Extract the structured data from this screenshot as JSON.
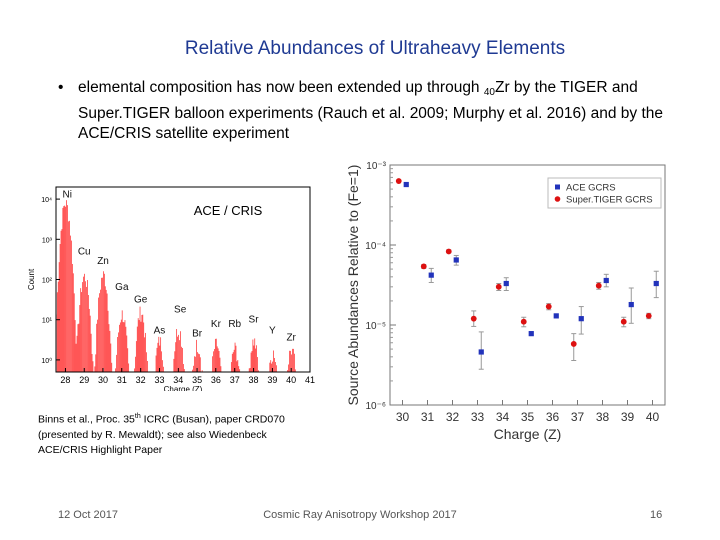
{
  "slide": {
    "title": "Relative Abundances of Ultraheavy Elements",
    "bullet": {
      "symbol": "•",
      "text_before": "elemental composition has now been extended up through ",
      "subscript": "40",
      "text_after": "Zr by the TIGER and Super.TIGER balloon experiments (Rauch et al. 2009; Murphy et al. 2016) and by the ACE/CRIS satellite experiment"
    },
    "citation": {
      "line1_before": "Binns et al., Proc. 35",
      "line1_sup": "th",
      "line1_after": " ICRC (Busan), paper CRD070",
      "line2": "(presented by R. Mewaldt); see also Wiedenbeck",
      "line3": "ACE/CRIS Highlight Paper"
    },
    "footer": {
      "date": "12 Oct 2017",
      "event": "Cosmic Ray Anisotropy Workshop 2017",
      "page": "16"
    }
  },
  "chart_data": [
    {
      "type": "histogram",
      "annotation": "ACE / CRIS",
      "xlabel": "Charge (Z)",
      "ylabel": "Count",
      "xlim": [
        27.5,
        41
      ],
      "x_ticks": [
        28,
        29,
        30,
        31,
        32,
        33,
        34,
        35,
        36,
        37,
        38,
        39,
        40,
        41
      ],
      "y_scale": "log",
      "ylim": [
        0.5,
        20000
      ],
      "y_ticks": [
        {
          "value": 1,
          "label": "10⁰"
        },
        {
          "value": 10,
          "label": "10¹"
        },
        {
          "value": 100,
          "label": "10²"
        },
        {
          "value": 1000,
          "label": "10³"
        },
        {
          "value": 10000,
          "label": "10⁴"
        }
      ],
      "bar_color": "#ff0000",
      "element_labels": [
        {
          "name": "Ni",
          "z": 28.1,
          "y": 11000
        },
        {
          "name": "Cu",
          "z": 29.0,
          "y": 420
        },
        {
          "name": "Zn",
          "z": 30.0,
          "y": 240
        },
        {
          "name": "Ga",
          "z": 31.0,
          "y": 55
        },
        {
          "name": "Ge",
          "z": 32.0,
          "y": 27
        },
        {
          "name": "As",
          "z": 33.0,
          "y": 4.5
        },
        {
          "name": "Se",
          "z": 34.1,
          "y": 15
        },
        {
          "name": "Br",
          "z": 35.0,
          "y": 3.8
        },
        {
          "name": "Kr",
          "z": 36.0,
          "y": 6.5
        },
        {
          "name": "Rb",
          "z": 37.0,
          "y": 6.5
        },
        {
          "name": "Sr",
          "z": 38.0,
          "y": 8.5
        },
        {
          "name": "Y",
          "z": 39.0,
          "y": 4.5
        },
        {
          "name": "Zr",
          "z": 40.0,
          "y": 3.0
        }
      ],
      "peaks": [
        {
          "z": 28,
          "height": 8000
        },
        {
          "z": 29,
          "height": 120
        },
        {
          "z": 30,
          "height": 130
        },
        {
          "z": 31,
          "height": 14
        },
        {
          "z": 32,
          "height": 16
        },
        {
          "z": 33,
          "height": 3
        },
        {
          "z": 34,
          "height": 6
        },
        {
          "z": 35,
          "height": 2.5
        },
        {
          "z": 36,
          "height": 2.5
        },
        {
          "z": 37,
          "height": 2
        },
        {
          "z": 38,
          "height": 3
        },
        {
          "z": 39,
          "height": 1.5
        },
        {
          "z": 40,
          "height": 1.8
        }
      ]
    },
    {
      "type": "scatter",
      "xlabel": "Charge (Z)",
      "ylabel": "Source Abundances Relative to (Fe=1)",
      "xlim": [
        29.5,
        40.5
      ],
      "x_ticks": [
        30,
        31,
        32,
        33,
        34,
        35,
        36,
        37,
        38,
        39,
        40
      ],
      "y_scale": "log",
      "ylim": [
        1e-06,
        0.001
      ],
      "y_ticks": [
        {
          "value": 0.001,
          "label": "10⁻³"
        },
        {
          "value": 0.0001,
          "label": "10⁻⁴"
        },
        {
          "value": 1e-05,
          "label": "10⁻⁵"
        },
        {
          "value": 1e-06,
          "label": "10⁻⁶"
        }
      ],
      "legend_position": "top-right",
      "series": [
        {
          "name": "ACE GCRS",
          "marker": "square",
          "color": "#2233bb",
          "points": [
            {
              "x": 30.15,
              "y": 0.00057,
              "err": [
                0.00057,
                0.00057
              ]
            },
            {
              "x": 31.15,
              "y": 4.2e-05,
              "err": [
                3.4e-05,
                5.1e-05
              ]
            },
            {
              "x": 32.15,
              "y": 6.5e-05,
              "err": [
                5.6e-05,
                7.4e-05
              ]
            },
            {
              "x": 33.15,
              "y": 4.6e-06,
              "err": [
                2.8e-06,
                8.2e-06
              ]
            },
            {
              "x": 34.15,
              "y": 3.3e-05,
              "err": [
                2.7e-05,
                3.9e-05
              ]
            },
            {
              "x": 35.15,
              "y": 7.8e-06,
              "err": [
                7.8e-06,
                7.8e-06
              ]
            },
            {
              "x": 36.15,
              "y": 1.3e-05,
              "err": [
                1.3e-05,
                1.3e-05
              ]
            },
            {
              "x": 37.15,
              "y": 1.2e-05,
              "err": [
                7.7e-06,
                1.7e-05
              ]
            },
            {
              "x": 38.15,
              "y": 3.6e-05,
              "err": [
                3e-05,
                4.3e-05
              ]
            },
            {
              "x": 39.15,
              "y": 1.8e-05,
              "err": [
                1.05e-05,
                2.9e-05
              ]
            },
            {
              "x": 40.15,
              "y": 3.3e-05,
              "err": [
                2.2e-05,
                4.7e-05
              ]
            }
          ]
        },
        {
          "name": "Super.TIGER GCRS",
          "marker": "circle",
          "color": "#dd1111",
          "points": [
            {
              "x": 29.85,
              "y": 0.00063,
              "err": [
                0.00063,
                0.00063
              ]
            },
            {
              "x": 30.85,
              "y": 5.4e-05,
              "err": [
                5.1e-05,
                5.7e-05
              ]
            },
            {
              "x": 31.85,
              "y": 8.3e-05,
              "err": [
                8e-05,
                8.7e-05
              ]
            },
            {
              "x": 32.85,
              "y": 1.2e-05,
              "err": [
                9.6e-06,
                1.5e-05
              ]
            },
            {
              "x": 33.85,
              "y": 3e-05,
              "err": [
                2.7e-05,
                3.3e-05
              ]
            },
            {
              "x": 34.85,
              "y": 1.1e-05,
              "err": [
                9.5e-06,
                1.25e-05
              ]
            },
            {
              "x": 35.85,
              "y": 1.7e-05,
              "err": [
                1.55e-05,
                1.85e-05
              ]
            },
            {
              "x": 36.85,
              "y": 5.8e-06,
              "err": [
                3.6e-06,
                7.8e-06
              ]
            },
            {
              "x": 37.85,
              "y": 3.1e-05,
              "err": [
                2.8e-05,
                3.4e-05
              ]
            },
            {
              "x": 38.85,
              "y": 1.1e-05,
              "err": [
                9.5e-06,
                1.25e-05
              ]
            },
            {
              "x": 39.85,
              "y": 1.3e-05,
              "err": [
                1.2e-05,
                1.4e-05
              ]
            }
          ]
        }
      ]
    }
  ]
}
